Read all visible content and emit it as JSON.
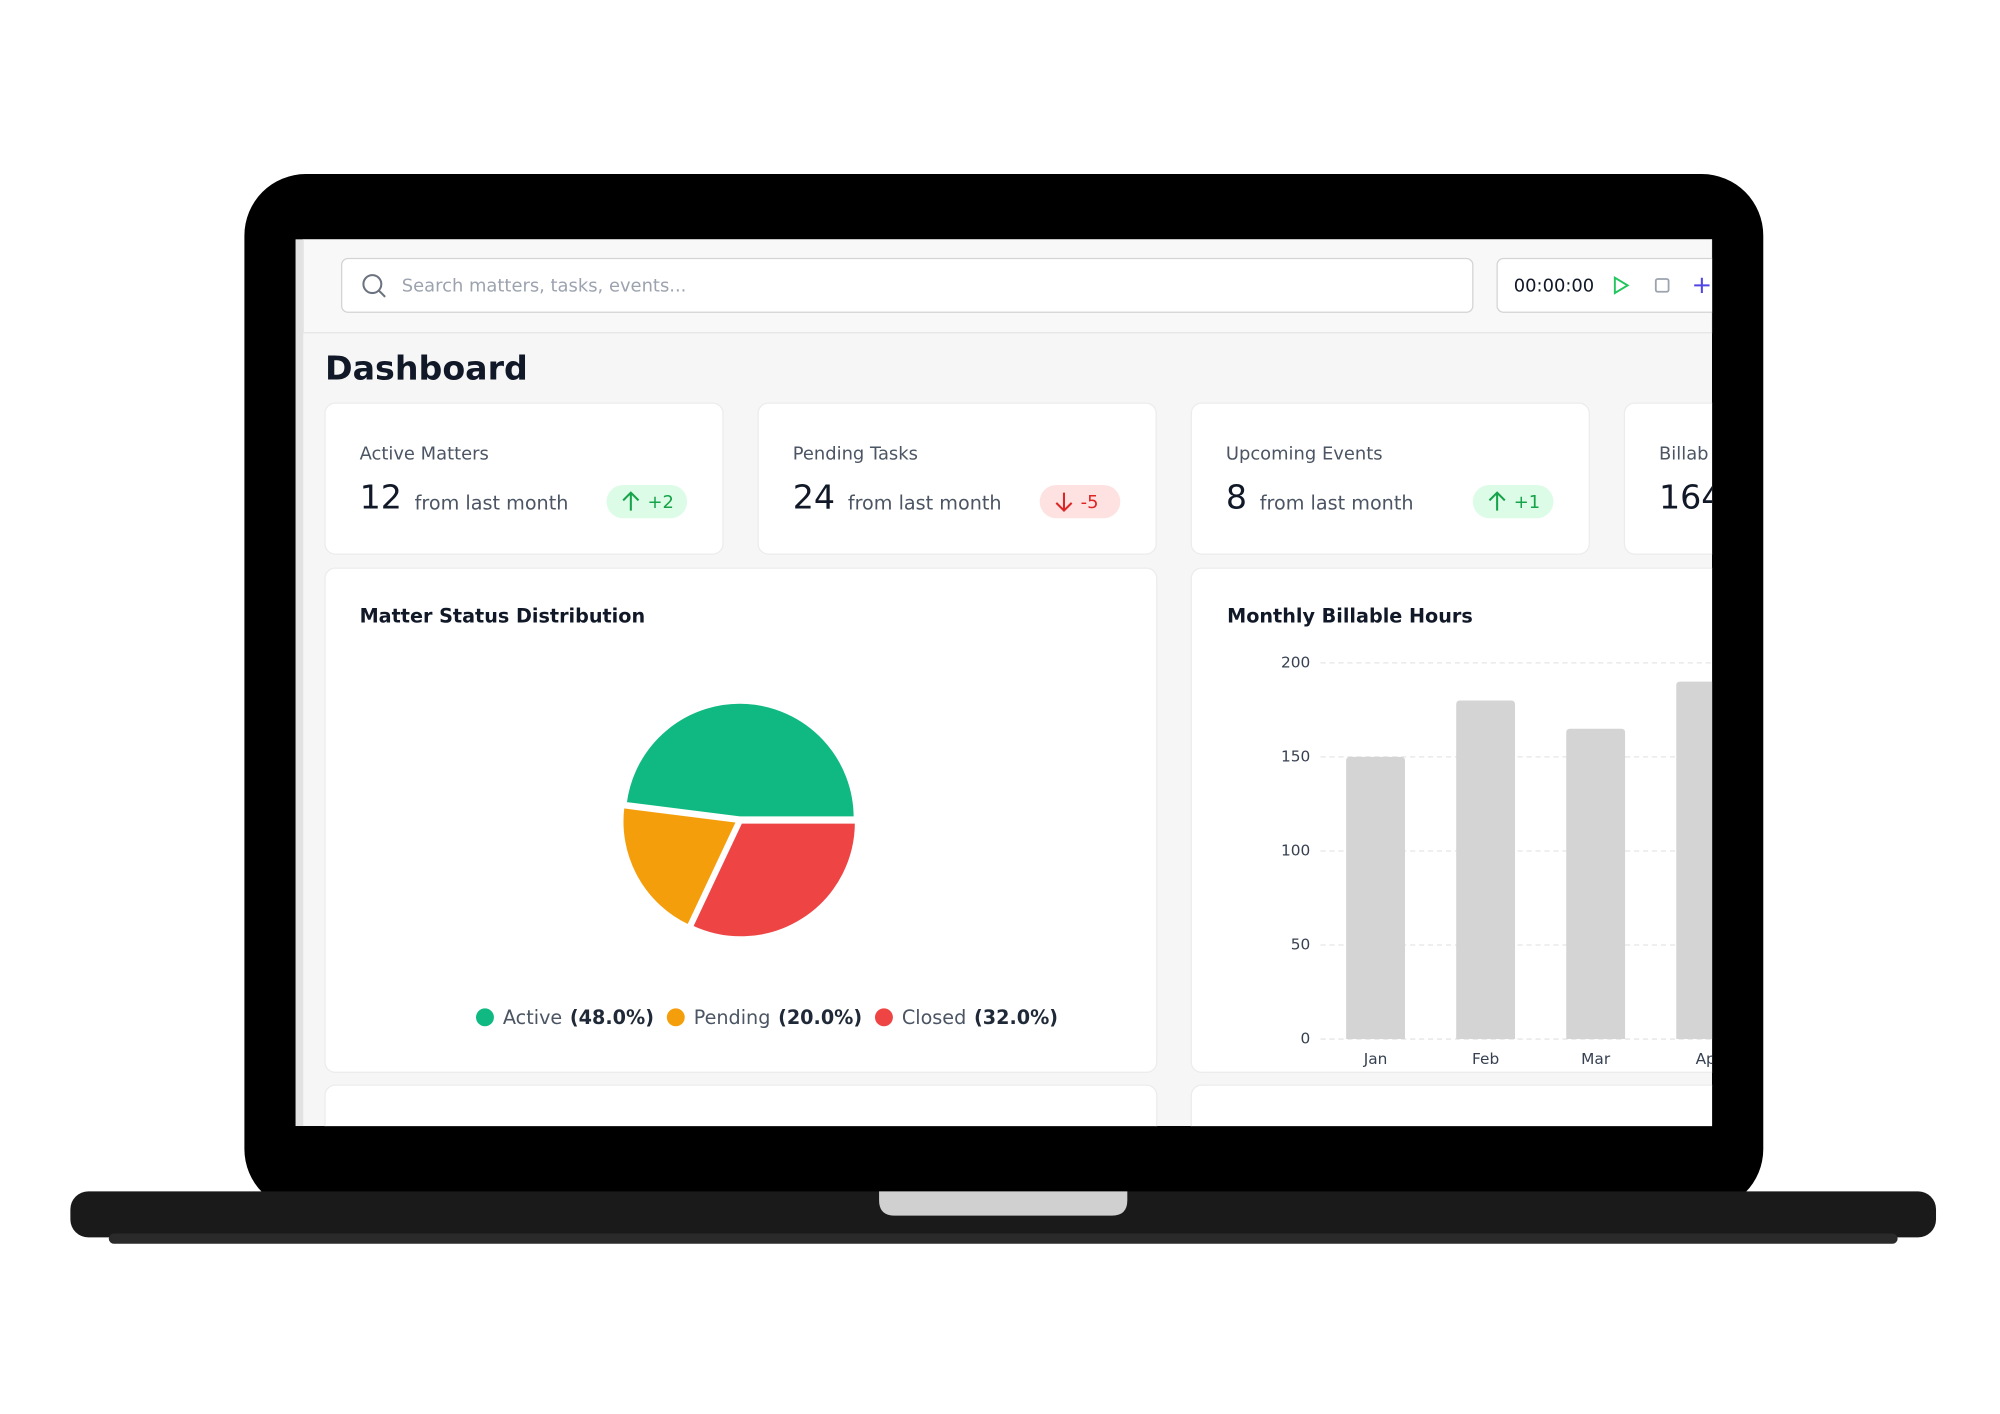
{
  "search": {
    "placeholder": "Search matters, tasks, events..."
  },
  "timer": "00:00:00",
  "title": "Dashboard",
  "stats": [
    {
      "label": "Active Matters",
      "value": "12",
      "note": "from last month",
      "change": "+2"
    },
    {
      "label": "Pending Tasks",
      "value": "24",
      "note": "from last month",
      "change": "-5"
    },
    {
      "label": "Upcoming Events",
      "value": "8",
      "note": "from last month",
      "change": "+1"
    },
    {
      "label": "Billab",
      "value": "164"
    }
  ],
  "pie_chart": {
    "type": "pie",
    "title": "Matter Status Distribution",
    "categories": [
      "Active",
      "Pending",
      "Closed"
    ],
    "values": [
      48,
      20,
      32
    ],
    "value_labels": [
      "(48.0%)",
      "(20.0%)",
      "(32.0%)"
    ],
    "colors": [
      "#10b981",
      "#f59e0b",
      "#ef4444"
    ]
  },
  "bar_chart": {
    "type": "bar",
    "title": "Monthly Billable Hours",
    "categories": [
      "Jan",
      "Feb",
      "Mar",
      "Ap"
    ],
    "values": [
      150,
      180,
      165,
      190
    ],
    "color": "#d4d4d4",
    "ylim": [
      0,
      200
    ],
    "yticks": [
      0,
      50,
      100,
      150,
      200
    ],
    "grid": true
  }
}
